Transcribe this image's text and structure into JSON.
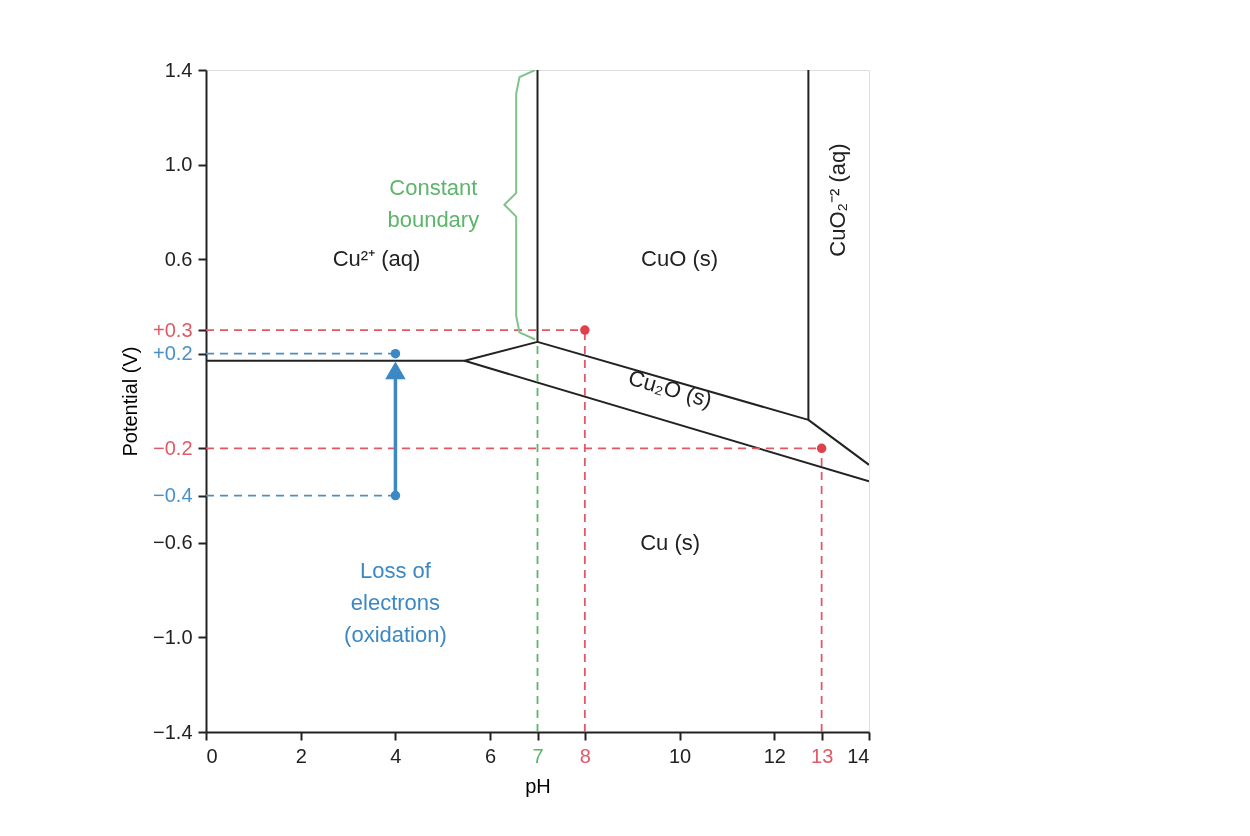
{
  "chart_data": {
    "type": "line",
    "xlabel": "pH",
    "ylabel": "Potential (V)",
    "xlim": [
      0,
      14
    ],
    "ylim": [
      -1.4,
      1.4
    ],
    "xticks": [
      0,
      2,
      4,
      6,
      7,
      8,
      10,
      12,
      13,
      14
    ],
    "yticks": [
      {
        "value": 1.4,
        "label": "1.4"
      },
      {
        "value": 1.0,
        "label": "1.0"
      },
      {
        "value": 0.6,
        "label": "0.6"
      },
      {
        "value": 0.3,
        "label": "+0.3"
      },
      {
        "value": 0.2,
        "label": "+0.2"
      },
      {
        "value": -0.2,
        "label": "−0.2"
      },
      {
        "value": -0.4,
        "label": "−0.4"
      },
      {
        "value": -0.6,
        "label": "−0.6"
      },
      {
        "value": -1.0,
        "label": "−1.0"
      },
      {
        "value": -1.4,
        "label": "−1.4"
      }
    ],
    "grid": false,
    "series": [
      {
        "color": "#222222",
        "line_style": "solid",
        "x": [
          0,
          5.46,
          7,
          7
        ],
        "values": [
          0.17,
          0.17,
          0.25,
          1.4
        ]
      },
      {
        "color": "#222222",
        "line_style": "solid",
        "x": [
          7,
          12.72,
          12.72
        ],
        "values": [
          0.25,
          -0.08,
          1.4
        ]
      },
      {
        "color": "#222222",
        "line_style": "solid",
        "x": [
          12.72,
          14
        ],
        "values": [
          -0.08,
          -0.27
        ]
      },
      {
        "color": "#222222",
        "line_style": "solid",
        "x": [
          5.46,
          14
        ],
        "values": [
          0.17,
          -0.34
        ]
      },
      {
        "color": "#e05a66",
        "line_style": "dashed",
        "x": [
          0,
          8
        ],
        "values": [
          0.3,
          0.3
        ]
      },
      {
        "color": "#4a90c8",
        "line_style": "dashed",
        "x": [
          0,
          4
        ],
        "values": [
          0.2,
          0.2
        ]
      },
      {
        "color": "#e05a66",
        "line_style": "dashed",
        "x": [
          0,
          13
        ],
        "values": [
          -0.2,
          -0.2
        ]
      },
      {
        "color": "#4a90c8",
        "line_style": "dashed",
        "x": [
          0,
          4
        ],
        "values": [
          -0.4,
          -0.4
        ]
      },
      {
        "color": "#5cb56a",
        "line_style": "dashed",
        "x": [
          7,
          7
        ],
        "values": [
          -1.4,
          0.25
        ]
      },
      {
        "color": "#e05a66",
        "line_style": "dashed",
        "x": [
          8,
          8
        ],
        "values": [
          -1.4,
          0.3
        ]
      },
      {
        "color": "#e05a66",
        "line_style": "dashed",
        "x": [
          13,
          13
        ],
        "values": [
          -1.4,
          -0.2
        ]
      },
      {
        "color": "#7cc48a",
        "line_style": "solid",
        "x": [
          6.95,
          6.62,
          6.55,
          6.55,
          6.3,
          6.55,
          6.55,
          6.62,
          6.95
        ],
        "values": [
          1.4,
          1.37,
          1.3,
          0.88,
          0.83,
          0.78,
          0.36,
          0.29,
          0.26
        ]
      },
      {
        "color": "#3b88c4",
        "line_style": "solid",
        "marker": "triangle",
        "x": [
          4,
          4
        ],
        "values": [
          -0.4,
          0.13
        ]
      },
      {
        "type": "scatter",
        "color": "#e0404c",
        "marker": "circle",
        "x": [
          8,
          13
        ],
        "values": [
          0.3,
          -0.2
        ]
      },
      {
        "type": "scatter",
        "color": "#3b88c4",
        "marker": "circle",
        "x": [
          4,
          4
        ],
        "values": [
          0.2,
          -0.4
        ]
      }
    ],
    "annotations": [
      "Cu²⁺ (aq)",
      "CuO (s)",
      "CuO₂⁻² (aq)",
      "Cu₂O (s)",
      "Cu (s)",
      "Constant\nboundary",
      "Loss of\nelectrons\n(oxidation)"
    ]
  }
}
